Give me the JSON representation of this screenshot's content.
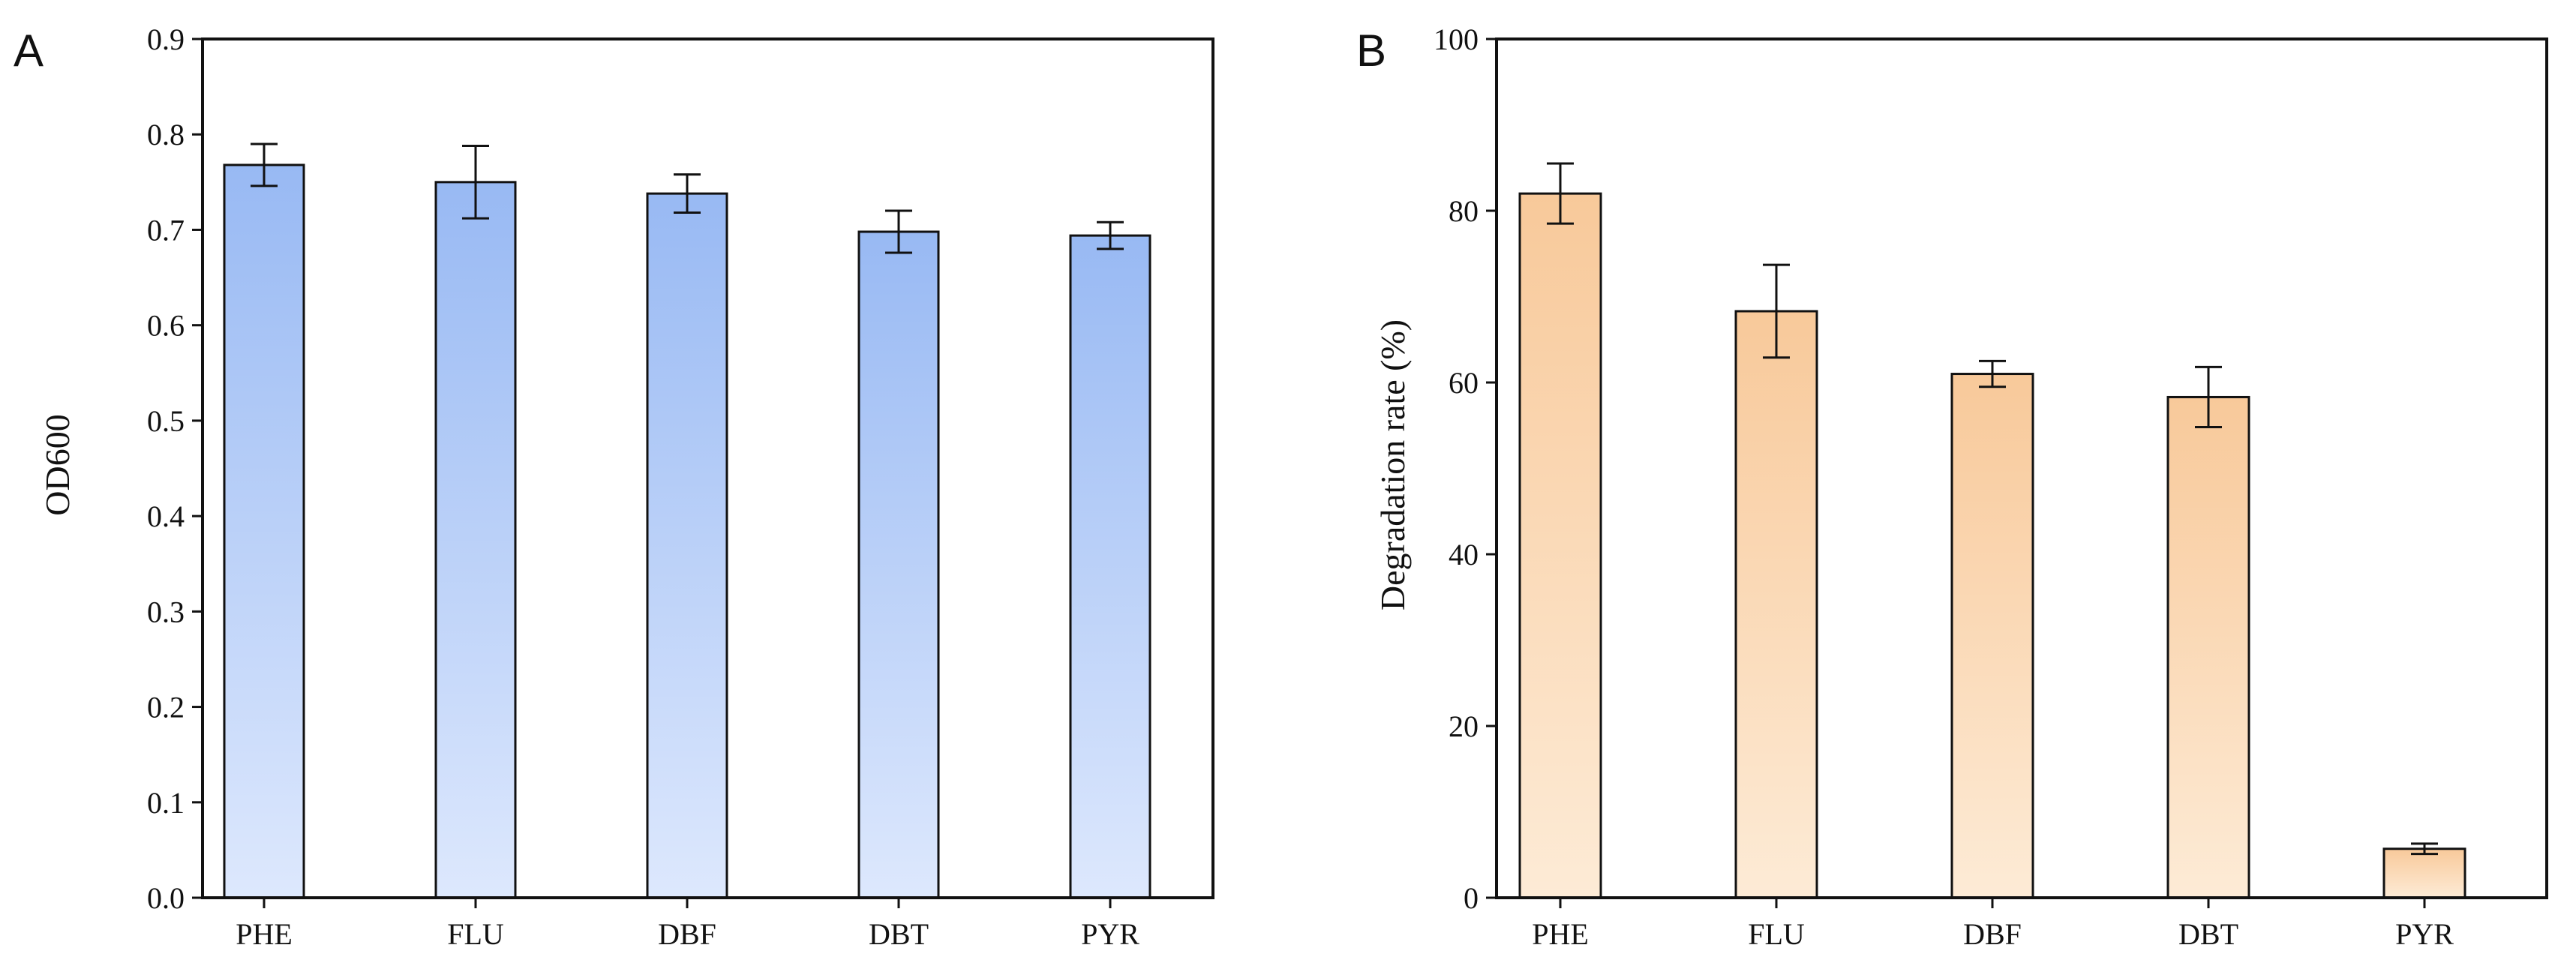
{
  "chart_data": [
    {
      "panel_label": "A",
      "type": "bar",
      "categories": [
        "PHE",
        "FLU",
        "DBF",
        "DBT",
        "PYR"
      ],
      "values": [
        0.768,
        0.75,
        0.738,
        0.698,
        0.694
      ],
      "errors": [
        0.022,
        0.038,
        0.02,
        0.022,
        0.014
      ],
      "title": "",
      "xlabel": "",
      "ylabel": "OD600",
      "ylim": [
        0,
        0.9
      ],
      "yticks": [
        0.0,
        0.1,
        0.2,
        0.3,
        0.4,
        0.5,
        0.6,
        0.7,
        0.8,
        0.9
      ],
      "ytick_labels": [
        "0.0",
        "0.1",
        "0.2",
        "0.3",
        "0.4",
        "0.5",
        "0.6",
        "0.7",
        "0.8",
        "0.9"
      ],
      "grid": false,
      "colors": {
        "top": "#98b9f3",
        "bottom": "#dde8fd"
      }
    },
    {
      "panel_label": "B",
      "type": "bar",
      "categories": [
        "PHE",
        "FLU",
        "DBF",
        "DBT",
        "PYR"
      ],
      "values": [
        82.0,
        68.3,
        61.0,
        58.3,
        5.7
      ],
      "errors": [
        3.5,
        5.4,
        1.5,
        3.5,
        0.6
      ],
      "title": "",
      "xlabel": "",
      "ylabel": "Degradation rate (%)",
      "ylim": [
        0,
        100
      ],
      "yticks": [
        0,
        20,
        40,
        60,
        80,
        100
      ],
      "ytick_labels": [
        "0",
        "20",
        "40",
        "60",
        "80",
        "100"
      ],
      "grid": false,
      "colors": {
        "top": "#f8c99a",
        "bottom": "#fdebd6"
      }
    }
  ]
}
